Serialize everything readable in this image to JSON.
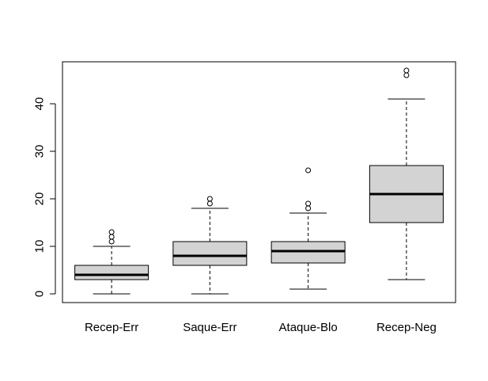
{
  "chart_data": {
    "type": "boxplot",
    "title": "",
    "xlabel": "",
    "ylabel": "",
    "ylim": [
      -2,
      49
    ],
    "yticks": [
      0,
      10,
      20,
      30,
      40
    ],
    "categories": [
      "Recep-Err",
      "Saque-Err",
      "Ataque-Blo",
      "Recep-Neg"
    ],
    "boxes": [
      {
        "name": "Recep-Err",
        "whisker_low": 0,
        "q1": 3,
        "median": 4,
        "q3": 6,
        "whisker_high": 10,
        "outliers": [
          11,
          12,
          13
        ]
      },
      {
        "name": "Saque-Err",
        "whisker_low": 0,
        "q1": 6,
        "median": 8,
        "q3": 11,
        "whisker_high": 18,
        "outliers": [
          19,
          20
        ]
      },
      {
        "name": "Ataque-Blo",
        "whisker_low": 1,
        "q1": 6.5,
        "median": 9,
        "q3": 11,
        "whisker_high": 17,
        "outliers": [
          18,
          19,
          26
        ]
      },
      {
        "name": "Recep-Neg",
        "whisker_low": 3,
        "q1": 15,
        "median": 21,
        "q3": 27,
        "whisker_high": 41,
        "outliers": [
          46,
          47
        ]
      }
    ],
    "box_fill": "#d3d3d3",
    "grid": false,
    "legend": "none"
  }
}
